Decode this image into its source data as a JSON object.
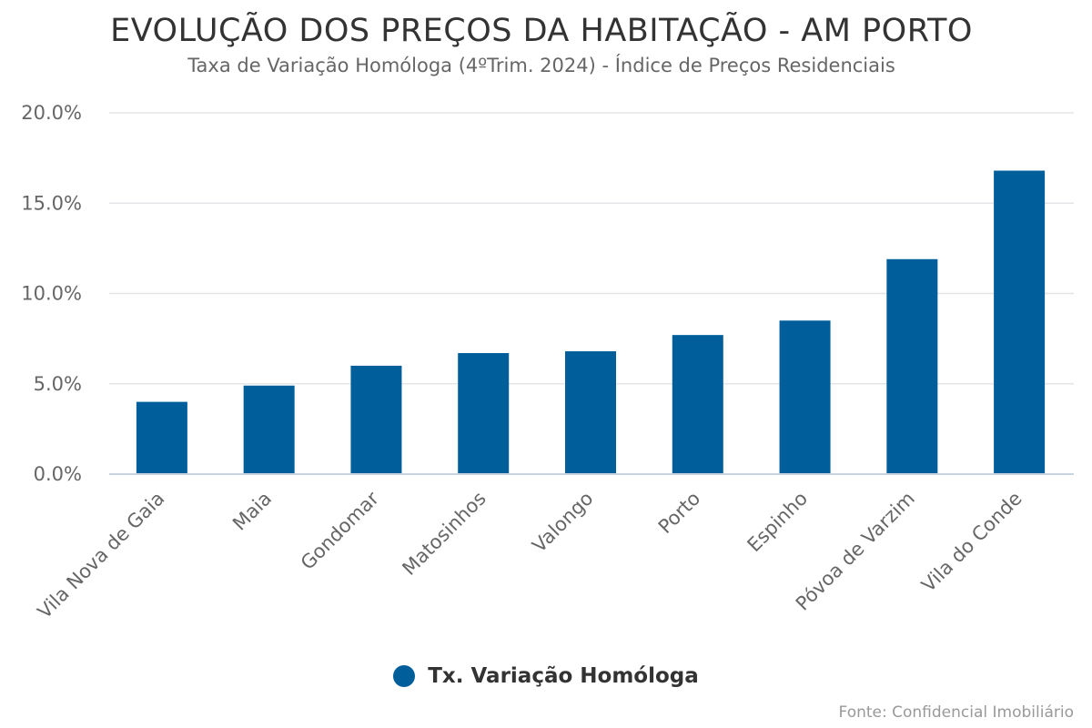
{
  "colors": {
    "bar": "#005F9B",
    "grid": "#E3E5E8",
    "axis_line": "#C8D5E0",
    "tick_text": "#666666"
  },
  "chart_data": {
    "type": "bar",
    "title": "EVOLUÇÃO DOS PREÇOS DA HABITAÇÃO - AM PORTO",
    "subtitle": "Taxa de Variação Homóloga (4ºTrim. 2024) - Índice de Preços Residenciais",
    "xlabel": "",
    "ylabel": "",
    "categories": [
      "Vila Nova de Gaia",
      "Maia",
      "Gondomar",
      "Matosinhos",
      "Valongo",
      "Porto",
      "Espinho",
      "Póvoa de Varzim",
      "Vila do Conde"
    ],
    "series": [
      {
        "name": "Tx. Variação Homóloga",
        "values": [
          4.0,
          4.9,
          6.0,
          6.7,
          6.8,
          7.7,
          8.5,
          11.9,
          16.8
        ]
      }
    ],
    "ylim": [
      0,
      20
    ],
    "yticks": [
      0,
      5,
      10,
      15,
      20
    ],
    "ytick_labels": [
      "0.0%",
      "5.0%",
      "10.0%",
      "15.0%",
      "20.0%"
    ],
    "grid": true,
    "legend_position": "bottom-center",
    "source": "Fonte: Confidencial Imobiliário"
  }
}
